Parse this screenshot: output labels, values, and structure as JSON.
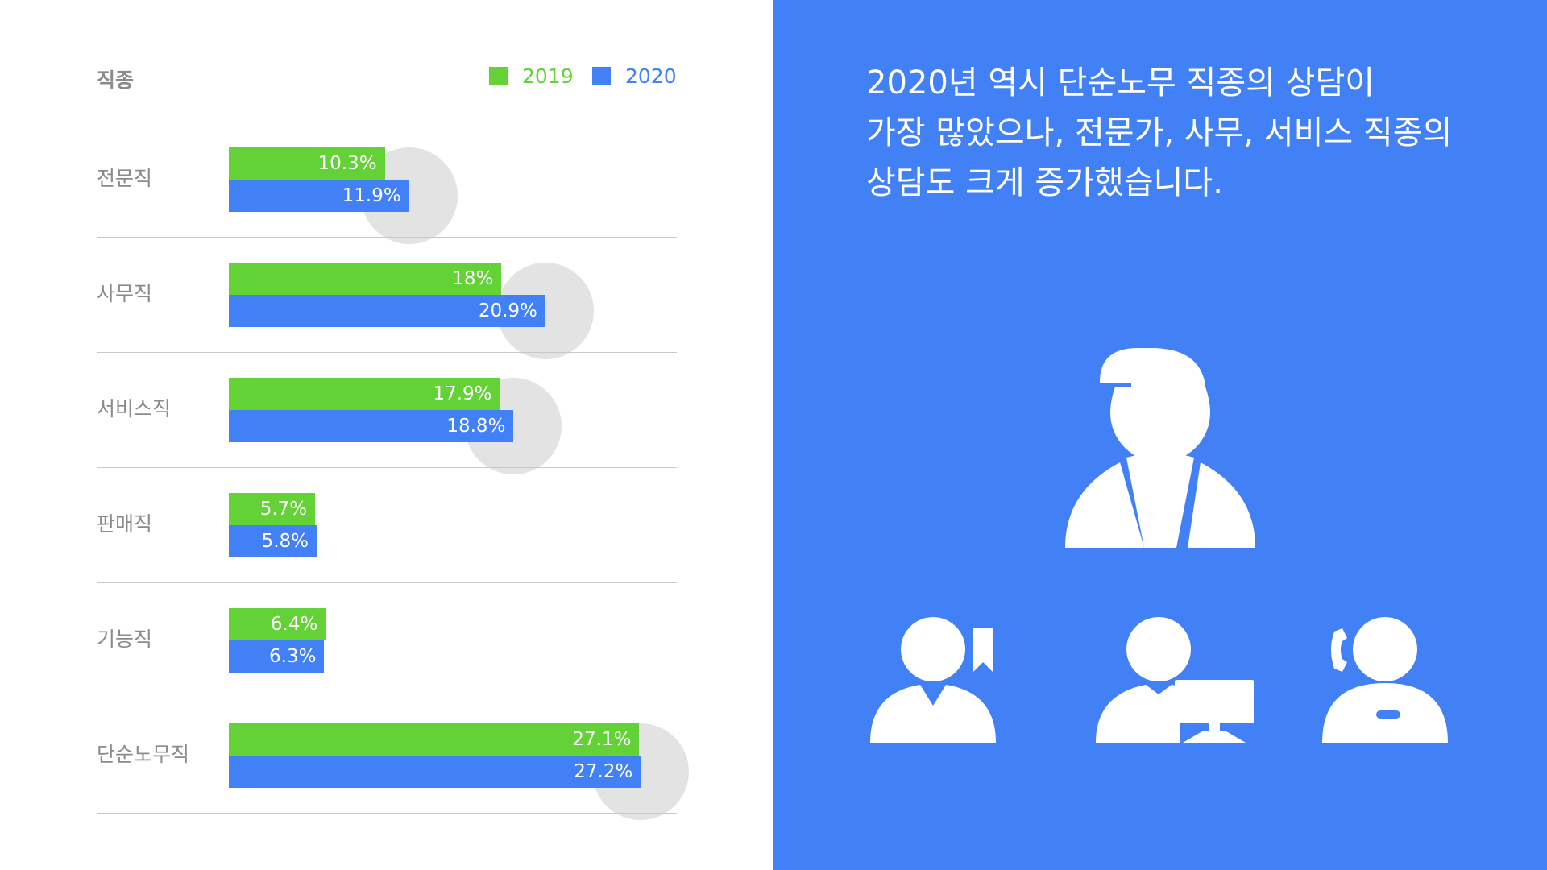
{
  "chart_data": {
    "type": "bar",
    "orientation": "horizontal",
    "header_label": "직종",
    "categories": [
      "전문직",
      "사무직",
      "서비스직",
      "판매직",
      "기능직",
      "단순노무직"
    ],
    "series": [
      {
        "name": "2019",
        "values": [
          10.3,
          18,
          17.9,
          5.7,
          6.4,
          27.1
        ],
        "labels": [
          "10.3%",
          "18%",
          "17.9%",
          "5.7%",
          "6.4%",
          "27.1%"
        ],
        "color": "#62d236"
      },
      {
        "name": "2020",
        "values": [
          11.9,
          20.9,
          18.8,
          5.8,
          6.3,
          27.2
        ],
        "labels": [
          "11.9%",
          "20.9%",
          "18.8%",
          "5.8%",
          "6.3%",
          "27.2%"
        ],
        "color": "#4281f5"
      }
    ],
    "xlim": [
      0,
      30
    ],
    "legend_position": "top-right",
    "grid": false
  },
  "headline": {
    "lines": [
      "2020년 역시 단순노무 직종의 상담이",
      "가장 많았으나, 전문가, 사무, 서비스 직종의",
      "상담도 크게 증가했습니다."
    ]
  },
  "colors": {
    "green": "#62d236",
    "blue": "#4281f5",
    "panel": "#4281f5",
    "circle": "#e3e3e3"
  },
  "icons": [
    "worker-cap-icon",
    "professional-bookmark-icon",
    "office-computer-icon",
    "service-headset-icon"
  ]
}
